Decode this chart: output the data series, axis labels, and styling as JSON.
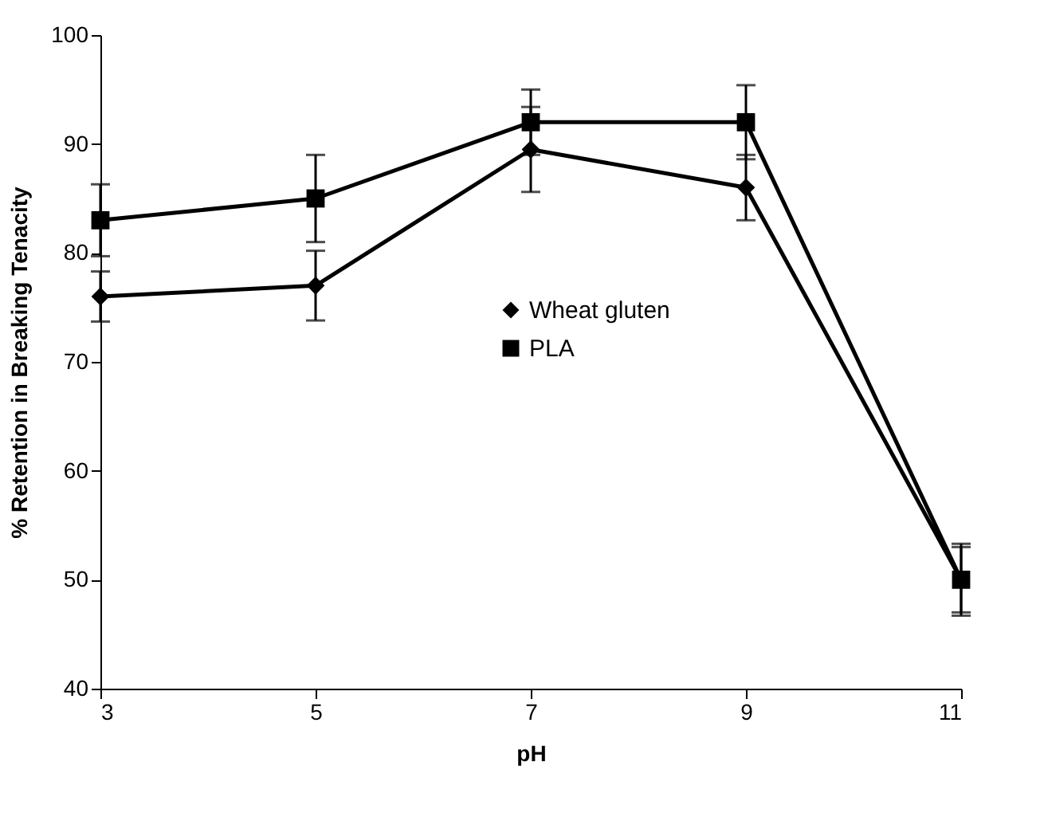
{
  "chart_data": {
    "type": "line",
    "xlabel": "pH",
    "ylabel": "% Retention in Breaking Tenacity",
    "x": [
      3,
      5,
      7,
      9,
      11
    ],
    "series": [
      {
        "name": "Wheat gluten",
        "color": "#000000",
        "marker": "diamond",
        "values": [
          76,
          77,
          89.5,
          86,
          50
        ],
        "errors": [
          2.3,
          3.2,
          3.9,
          3,
          3.3
        ]
      },
      {
        "name": "PLA",
        "color": "#000000",
        "marker": "square",
        "values": [
          83,
          85,
          92,
          92,
          50
        ],
        "errors": [
          3.3,
          4,
          3,
          3.4,
          3
        ]
      }
    ],
    "xlim": [
      3,
      11
    ],
    "xticks": [
      3,
      5,
      7,
      9,
      11
    ],
    "ylim": [
      40,
      100
    ],
    "yticks": [
      40,
      50,
      60,
      70,
      80,
      90,
      100
    ],
    "grid": false,
    "legend": "right",
    "line_style": "solid"
  }
}
